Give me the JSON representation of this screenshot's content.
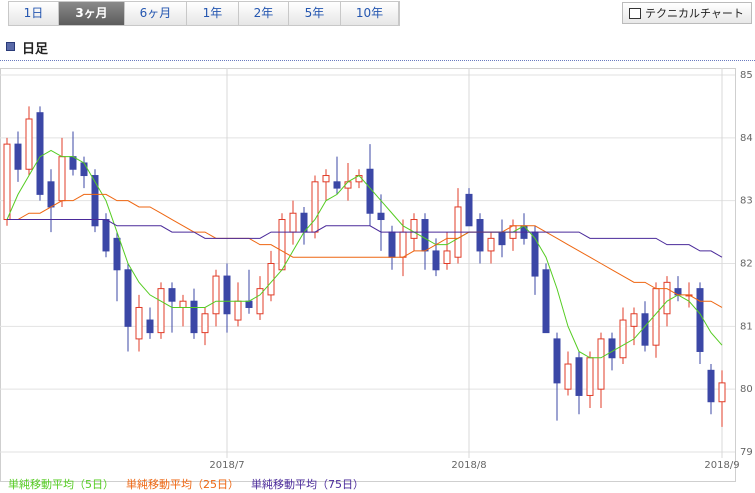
{
  "tabs": [
    "1日",
    "3ヶ月",
    "6ヶ月",
    "1年",
    "2年",
    "5年",
    "10年"
  ],
  "selected_tab": 1,
  "button": "テクニカルチャート",
  "section_title": "日足",
  "chart_data": {
    "type": "candlestick",
    "categories": [
      null,
      null,
      null,
      null,
      null,
      null,
      null,
      null,
      null,
      null,
      null,
      null,
      null,
      null,
      null,
      null,
      null,
      null,
      null,
      null,
      "2018/7",
      null,
      null,
      null,
      null,
      null,
      null,
      null,
      null,
      null,
      null,
      null,
      null,
      null,
      null,
      null,
      null,
      null,
      null,
      null,
      null,
      null,
      "2018/8",
      null,
      null,
      null,
      null,
      null,
      null,
      null,
      null,
      null,
      null,
      null,
      null,
      null,
      null,
      null,
      null,
      null,
      null,
      null,
      null,
      null,
      null,
      "2018/9"
    ],
    "open": [
      82.7,
      83.9,
      83.5,
      84.4,
      83.3,
      83.0,
      83.7,
      83.6,
      83.4,
      82.7,
      82.4,
      81.9,
      80.8,
      81.1,
      80.9,
      81.6,
      81.3,
      81.4,
      80.9,
      81.2,
      81.8,
      81.1,
      81.4,
      81.2,
      81.5,
      81.9,
      82.5,
      82.8,
      82.5,
      83.3,
      83.3,
      83.2,
      83.3,
      83.5,
      82.8,
      82.5,
      82.1,
      82.4,
      82.7,
      82.2,
      82.0,
      82.1,
      83.1,
      82.7,
      82.2,
      82.5,
      82.4,
      82.6,
      82.5,
      81.9,
      80.8,
      80.0,
      80.5,
      79.9,
      80.0,
      80.8,
      80.5,
      81.0,
      81.2,
      80.7,
      81.2,
      81.6,
      81.5,
      81.6,
      80.3,
      79.8
    ],
    "high": [
      84.0,
      84.1,
      84.5,
      84.5,
      83.5,
      84.0,
      84.1,
      83.7,
      83.5,
      82.8,
      82.5,
      82.0,
      81.5,
      81.3,
      81.7,
      81.7,
      81.5,
      81.6,
      81.3,
      81.9,
      82.0,
      81.7,
      81.9,
      81.8,
      82.2,
      82.8,
      83.0,
      82.9,
      83.4,
      83.5,
      83.7,
      83.6,
      83.5,
      83.9,
      83.1,
      82.6,
      82.7,
      82.8,
      82.8,
      82.4,
      82.5,
      83.2,
      83.2,
      82.8,
      82.5,
      82.7,
      82.7,
      82.8,
      82.6,
      82.0,
      80.9,
      80.6,
      80.6,
      80.6,
      80.9,
      80.9,
      81.3,
      81.3,
      81.4,
      81.7,
      81.8,
      81.8,
      81.7,
      81.7,
      80.4,
      80.3
    ],
    "low": [
      82.6,
      83.3,
      83.4,
      83.0,
      82.5,
      82.9,
      83.4,
      83.2,
      82.5,
      82.1,
      81.4,
      80.6,
      80.6,
      80.8,
      80.8,
      80.9,
      81.0,
      80.8,
      80.7,
      81.0,
      80.9,
      81.0,
      81.2,
      81.1,
      81.4,
      81.9,
      82.3,
      82.3,
      82.4,
      83.0,
      83.1,
      83.0,
      83.2,
      82.6,
      82.2,
      81.9,
      81.8,
      82.2,
      81.9,
      81.8,
      81.9,
      82.0,
      82.6,
      82.0,
      82.0,
      82.1,
      82.2,
      82.3,
      81.5,
      80.9,
      79.5,
      79.9,
      79.6,
      79.7,
      79.7,
      80.3,
      80.4,
      80.7,
      80.6,
      80.5,
      81.0,
      81.4,
      81.3,
      80.4,
      79.6,
      79.4
    ],
    "close": [
      83.9,
      83.5,
      84.3,
      83.1,
      82.9,
      83.7,
      83.5,
      83.4,
      82.6,
      82.2,
      81.9,
      81.0,
      81.3,
      80.9,
      81.6,
      81.4,
      81.4,
      80.9,
      81.2,
      81.8,
      81.2,
      81.4,
      81.3,
      81.6,
      82.0,
      82.7,
      82.8,
      82.5,
      83.3,
      83.4,
      83.2,
      83.3,
      83.4,
      82.8,
      82.7,
      82.1,
      82.5,
      82.7,
      82.2,
      81.9,
      82.2,
      82.9,
      82.6,
      82.2,
      82.4,
      82.3,
      82.6,
      82.4,
      81.8,
      80.9,
      80.1,
      80.4,
      79.9,
      80.5,
      80.8,
      80.5,
      81.1,
      81.2,
      80.7,
      81.6,
      81.7,
      81.5,
      81.5,
      80.6,
      79.8,
      80.1
    ],
    "up_color": "#e03c28",
    "down_color": "#3b47a6",
    "series": [
      {
        "name": "単純移動平均（5日）",
        "color": "#55cc22",
        "values": [
          82.7,
          83.1,
          83.4,
          83.7,
          83.8,
          83.7,
          83.7,
          83.6,
          83.3,
          83.0,
          82.5,
          82.0,
          81.7,
          81.5,
          81.4,
          81.3,
          81.3,
          81.3,
          81.3,
          81.4,
          81.4,
          81.4,
          81.4,
          81.5,
          81.7,
          81.9,
          82.2,
          82.5,
          82.7,
          83.0,
          83.1,
          83.3,
          83.4,
          83.2,
          83.0,
          82.8,
          82.6,
          82.5,
          82.4,
          82.3,
          82.3,
          82.4,
          82.5,
          82.5,
          82.5,
          82.5,
          82.5,
          82.6,
          82.4,
          82.1,
          81.6,
          81.0,
          80.6,
          80.5,
          80.5,
          80.6,
          80.7,
          80.8,
          81.0,
          81.2,
          81.4,
          81.5,
          81.4,
          81.2,
          80.9,
          80.7
        ]
      },
      {
        "name": "単純移動平均（25日）",
        "color": "#ee6611",
        "values": [
          82.7,
          82.7,
          82.8,
          82.8,
          82.9,
          83.0,
          83.0,
          83.1,
          83.1,
          83.1,
          83.0,
          83.0,
          82.9,
          82.9,
          82.8,
          82.7,
          82.6,
          82.5,
          82.5,
          82.4,
          82.4,
          82.4,
          82.4,
          82.3,
          82.3,
          82.2,
          82.1,
          82.1,
          82.1,
          82.1,
          82.1,
          82.1,
          82.1,
          82.1,
          82.1,
          82.1,
          82.1,
          82.2,
          82.2,
          82.3,
          82.4,
          82.4,
          82.5,
          82.5,
          82.5,
          82.5,
          82.6,
          82.6,
          82.6,
          82.5,
          82.4,
          82.3,
          82.2,
          82.1,
          82.0,
          81.9,
          81.8,
          81.7,
          81.7,
          81.6,
          81.6,
          81.5,
          81.5,
          81.4,
          81.4,
          81.3
        ]
      },
      {
        "name": "単純移動平均（75日）",
        "color": "#4a2a9a",
        "values": [
          82.7,
          82.7,
          82.7,
          82.7,
          82.7,
          82.7,
          82.7,
          82.7,
          82.7,
          82.7,
          82.6,
          82.6,
          82.6,
          82.6,
          82.6,
          82.5,
          82.5,
          82.5,
          82.4,
          82.4,
          82.4,
          82.4,
          82.4,
          82.4,
          82.5,
          82.5,
          82.5,
          82.5,
          82.5,
          82.6,
          82.6,
          82.6,
          82.6,
          82.6,
          82.5,
          82.5,
          82.5,
          82.5,
          82.5,
          82.5,
          82.5,
          82.5,
          82.5,
          82.5,
          82.5,
          82.5,
          82.5,
          82.5,
          82.5,
          82.5,
          82.5,
          82.5,
          82.5,
          82.4,
          82.4,
          82.4,
          82.4,
          82.4,
          82.4,
          82.4,
          82.3,
          82.3,
          82.3,
          82.2,
          82.2,
          82.1
        ]
      }
    ],
    "ylim": [
      79,
      85
    ],
    "yticks": [
      79,
      80,
      81,
      82,
      83,
      84,
      85
    ],
    "grid": true
  }
}
